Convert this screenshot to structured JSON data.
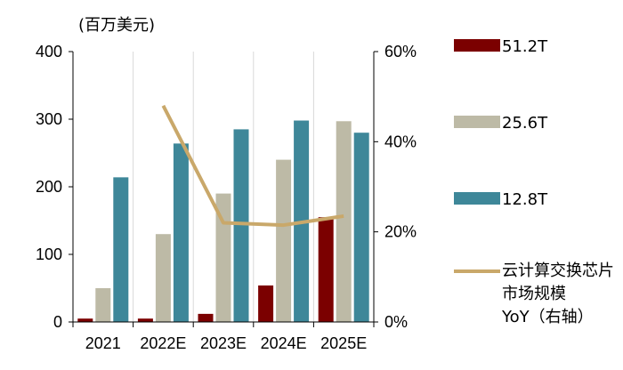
{
  "unit_label": "(百万美元)",
  "chart_data": {
    "type": "bar",
    "categories": [
      "2021",
      "2022E",
      "2023E",
      "2024E",
      "2025E"
    ],
    "series": [
      {
        "name": "51.2T",
        "type": "bar",
        "axis": "left",
        "color": "#7B0000",
        "values": [
          5,
          5,
          12,
          54,
          155
        ]
      },
      {
        "name": "25.6T",
        "type": "bar",
        "axis": "left",
        "color": "#BDBAA6",
        "values": [
          50,
          130,
          190,
          240,
          297
        ]
      },
      {
        "name": "12.8T",
        "type": "bar",
        "axis": "left",
        "color": "#3E8799",
        "values": [
          214,
          264,
          285,
          298,
          280
        ]
      },
      {
        "name": "云计算交换芯片市场规模YoY（右轴）",
        "type": "line",
        "axis": "right",
        "color": "#C9A86A",
        "values": [
          null,
          0.48,
          0.22,
          0.215,
          0.235
        ]
      }
    ],
    "y_left": {
      "min": 0,
      "max": 400,
      "ticks": [
        0,
        100,
        200,
        300,
        400
      ],
      "tick_labels": [
        "0",
        "100",
        "200",
        "300",
        "400"
      ]
    },
    "y_right": {
      "min": 0,
      "max": 0.6,
      "ticks": [
        0,
        0.2,
        0.4,
        0.6
      ],
      "tick_labels": [
        "0%",
        "20%",
        "40%",
        "60%"
      ]
    },
    "grid": "vertical",
    "legend_position": "right",
    "legend_labels": [
      "51.2T",
      "25.6T",
      "12.8T",
      "云计算交换芯片\n市场规模\nYoY（右轴）"
    ]
  }
}
